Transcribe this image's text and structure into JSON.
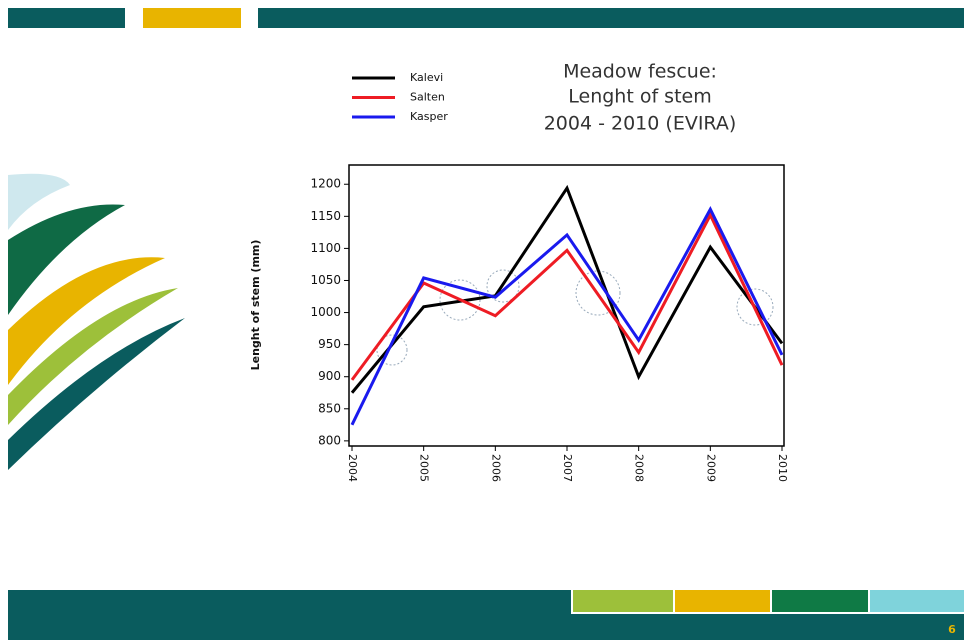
{
  "chart_data": {
    "type": "line",
    "title": [
      "Meadow fescue:",
      "Lenght of stem",
      "2004 - 2010 (EVIRA)"
    ],
    "y_label": "Lenght of stem (mm)",
    "categories": [
      "2004",
      "2005",
      "2006",
      "2007",
      "2008",
      "2009",
      "2010"
    ],
    "series": [
      {
        "name": "Kalevi",
        "color": "#000000",
        "values": [
          875,
          1009,
          1026,
          1194,
          900,
          1102,
          952
        ]
      },
      {
        "name": "Salten",
        "color": "#ee1c24",
        "values": [
          895,
          1046,
          995,
          1097,
          938,
          1152,
          918
        ]
      },
      {
        "name": "Kasper",
        "color": "#1a1aee",
        "values": [
          825,
          1054,
          1024,
          1121,
          957,
          1161,
          934
        ]
      }
    ],
    "ylim": [
      792,
      1230
    ],
    "yticks": [
      800,
      850,
      900,
      950,
      1000,
      1050,
      1100,
      1150,
      1200
    ],
    "legend": "top-left",
    "page_number": "6"
  }
}
